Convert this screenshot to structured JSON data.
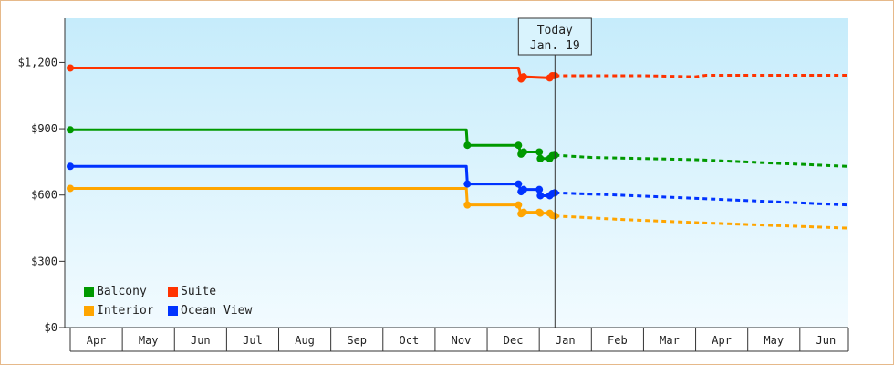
{
  "chart_data": {
    "type": "line",
    "title": "",
    "xlabel": "",
    "ylabel": "",
    "ylim": [
      0,
      1400
    ],
    "y_ticks": [
      0,
      300,
      600,
      900,
      1200
    ],
    "y_tick_labels": [
      "$0",
      "$300",
      "$600",
      "$900",
      "$1,200"
    ],
    "x_tick_labels": [
      "Apr",
      "May",
      "Jun",
      "Jul",
      "Aug",
      "Sep",
      "Oct",
      "Nov",
      "Dec",
      "Jan",
      "Feb",
      "Mar",
      "Apr",
      "May",
      "Jun"
    ],
    "x_range_months": [
      "Apr",
      "Jun"
    ],
    "today_label": [
      "Today",
      "Jan. 19"
    ],
    "today": 9.3,
    "grid": false,
    "legend_position": "bottom-left",
    "series": [
      {
        "name": "Suite",
        "color": "#ff3300",
        "history": [
          [
            0,
            1175
          ],
          [
            8.6,
            1175
          ],
          [
            8.65,
            1125
          ],
          [
            8.7,
            1135
          ],
          [
            9.2,
            1130
          ],
          [
            9.25,
            1140
          ],
          [
            9.3,
            1140
          ]
        ],
        "forecast": [
          [
            9.3,
            1140
          ],
          [
            11.0,
            1140
          ],
          [
            12.0,
            1135
          ],
          [
            12.2,
            1142
          ],
          [
            14.9,
            1142
          ]
        ]
      },
      {
        "name": "Balcony",
        "color": "#009900",
        "history": [
          [
            0,
            895
          ],
          [
            7.6,
            895
          ],
          [
            7.62,
            825
          ],
          [
            8.6,
            825
          ],
          [
            8.65,
            785
          ],
          [
            8.7,
            795
          ],
          [
            9.0,
            795
          ],
          [
            9.02,
            765
          ],
          [
            9.2,
            765
          ],
          [
            9.25,
            778
          ],
          [
            9.3,
            780
          ]
        ],
        "forecast": [
          [
            9.3,
            780
          ],
          [
            10.0,
            770
          ],
          [
            12.0,
            760
          ],
          [
            14.9,
            730
          ]
        ]
      },
      {
        "name": "Ocean View",
        "color": "#0033ff",
        "history": [
          [
            0,
            730
          ],
          [
            7.6,
            730
          ],
          [
            7.62,
            650
          ],
          [
            8.6,
            650
          ],
          [
            8.65,
            615
          ],
          [
            8.7,
            625
          ],
          [
            9.0,
            625
          ],
          [
            9.02,
            597
          ],
          [
            9.2,
            597
          ],
          [
            9.25,
            607
          ],
          [
            9.3,
            610
          ]
        ],
        "forecast": [
          [
            9.3,
            610
          ],
          [
            10.5,
            600
          ],
          [
            12.0,
            585
          ],
          [
            14.9,
            555
          ]
        ]
      },
      {
        "name": "Interior",
        "color": "#ffa500",
        "history": [
          [
            0,
            630
          ],
          [
            7.6,
            630
          ],
          [
            7.62,
            555
          ],
          [
            8.6,
            555
          ],
          [
            8.65,
            515
          ],
          [
            8.7,
            522
          ],
          [
            9.0,
            522
          ],
          [
            9.02,
            518
          ],
          [
            9.2,
            518
          ],
          [
            9.25,
            508
          ],
          [
            9.3,
            505
          ]
        ],
        "forecast": [
          [
            9.3,
            505
          ],
          [
            10.5,
            490
          ],
          [
            12.0,
            475
          ],
          [
            14.9,
            450
          ]
        ]
      }
    ],
    "legend_order": [
      "Balcony",
      "Suite",
      "Interior",
      "Ocean View"
    ]
  }
}
